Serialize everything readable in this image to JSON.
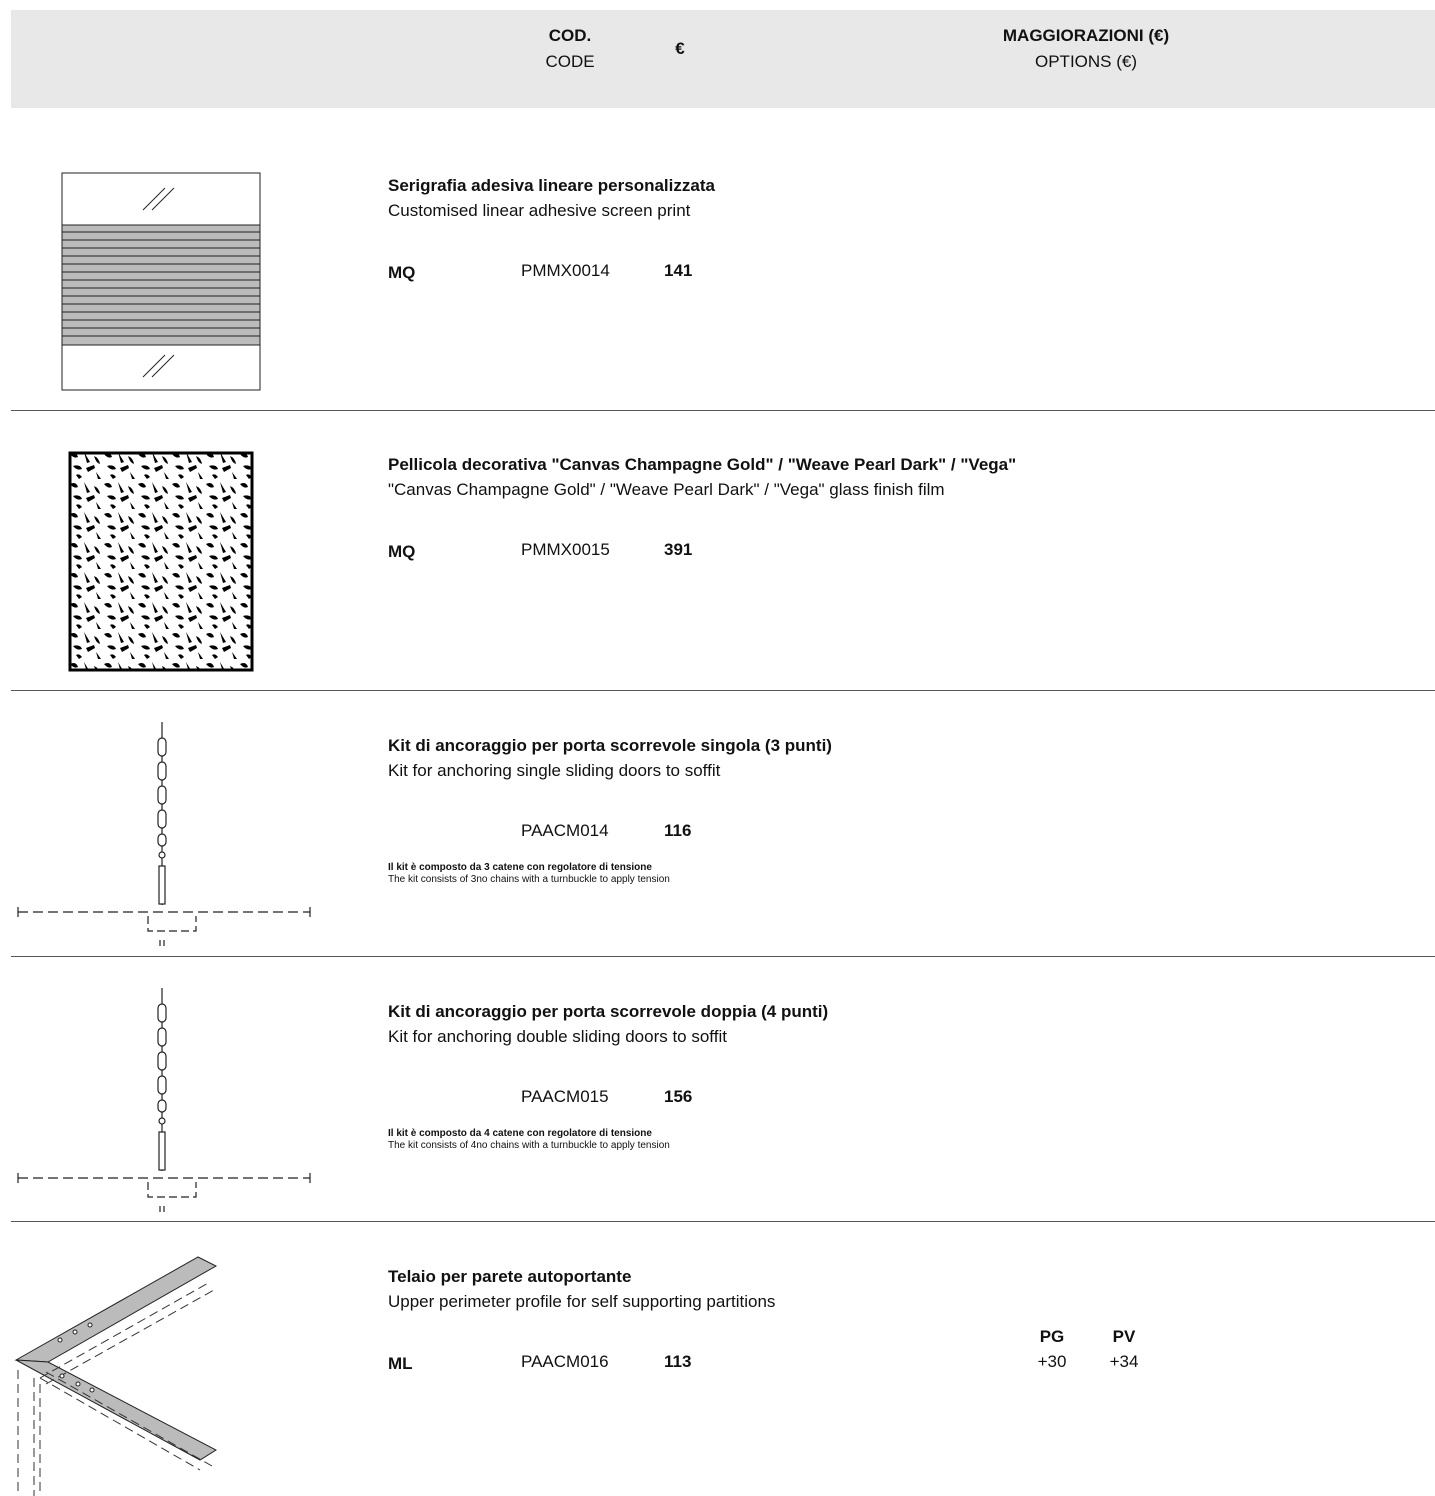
{
  "header": {
    "code_it": "COD.",
    "code_en": "CODE",
    "price": "€",
    "options_it": "MAGGIORAZIONI (€)",
    "options_en": "OPTIONS (€)"
  },
  "items": [
    {
      "title_it": "Serigrafia adesiva lineare personalizzata",
      "title_en": "Customised linear adhesive screen print",
      "unit": "MQ",
      "code": "PMMX0014",
      "price": 141
    },
    {
      "title_it": "Pellicola decorativa \"Canvas Champagne Gold\" / \"Weave Pearl Dark\" / \"Vega\"",
      "title_en": "\"Canvas Champagne Gold\" / \"Weave Pearl Dark\" / \"Vega\" glass finish film",
      "unit": "MQ",
      "code": "PMMX0015",
      "price": 391
    },
    {
      "title_it": "Kit di ancoraggio per porta scorrevole singola (3 punti)",
      "title_en": "Kit for anchoring single sliding doors to soffit",
      "code": "PAACM014",
      "price": 116,
      "note_it": "Il kit è composto da 3 catene con regolatore di tensione",
      "note_en": "The kit consists of 3no chains with a turnbuckle to apply tension"
    },
    {
      "title_it": "Kit di ancoraggio per porta scorrevole doppia (4 punti)",
      "title_en": "Kit for anchoring double sliding doors to soffit",
      "code": "PAACM015",
      "price": 156,
      "note_it": "Il kit è composto da 4 catene con regolatore di tensione",
      "note_en": "The kit consists of 4no chains with a turnbuckle to apply tension"
    },
    {
      "title_it": "Telaio per parete autoportante",
      "title_en": "Upper perimeter profile for self supporting partitions",
      "unit": "ML",
      "code": "PAACM016",
      "price": 113,
      "options": [
        {
          "label": "PG",
          "value": "+30"
        },
        {
          "label": "PV",
          "value": "+34"
        }
      ]
    }
  ]
}
